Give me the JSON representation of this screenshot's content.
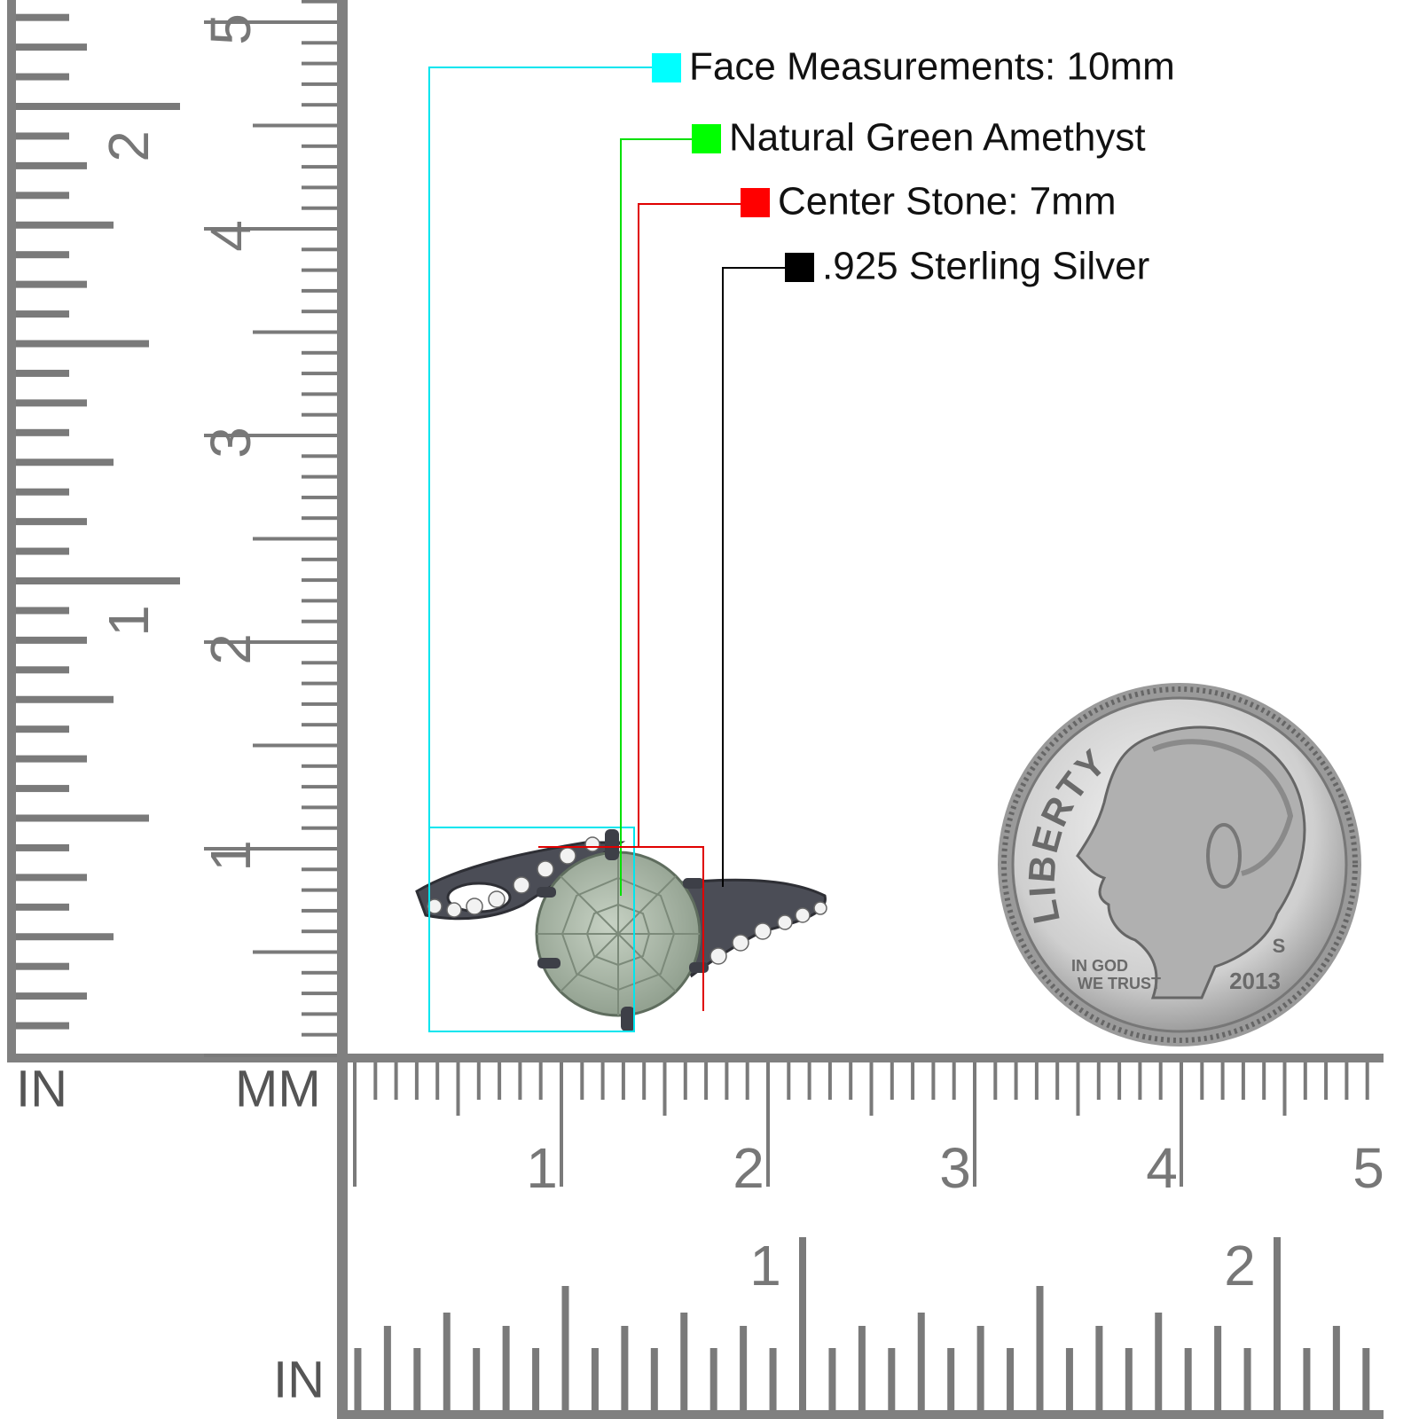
{
  "legend": [
    {
      "label": "Face Measurements: 10mm",
      "color": "#00ffff"
    },
    {
      "label": "Natural Green Amethyst",
      "color": "#00ff00"
    },
    {
      "label": "Center Stone: 7mm",
      "color": "#ff0000"
    },
    {
      "label": ".925 Sterling Silver",
      "color": "#000000"
    }
  ],
  "rulers": {
    "vertical": {
      "mm_labels": [
        "1",
        "2",
        "3",
        "4",
        "5"
      ],
      "inch_labels": [
        "1",
        "2"
      ],
      "inch_unit": "IN",
      "mm_unit": "MM"
    },
    "horizontal": {
      "mm_labels": [
        "1",
        "2",
        "3",
        "4",
        "5"
      ],
      "inch_labels": [
        "1",
        "2"
      ],
      "inch_unit": "IN"
    }
  },
  "coin": {
    "motto_top": "LIBERTY",
    "motto_left": [
      "IN GOD",
      "WE TRUST"
    ],
    "year": "2013",
    "mint_mark": "S"
  }
}
